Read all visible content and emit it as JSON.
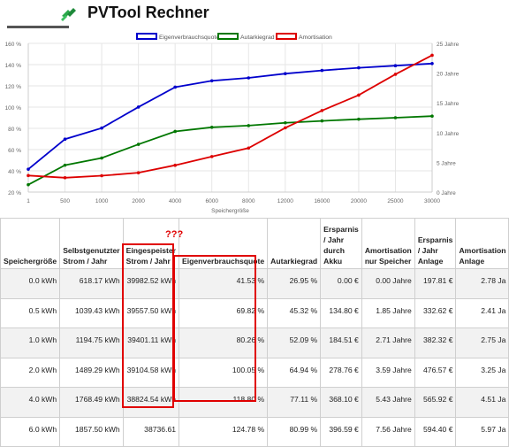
{
  "app": {
    "title": "PVTool Rechner",
    "logo_icon": "pvtool-logo-icon"
  },
  "chart_data": {
    "type": "line",
    "categories": [
      "1",
      "500",
      "1000",
      "2000",
      "4000",
      "6000",
      "8000",
      "12000",
      "16000",
      "20000",
      "25000",
      "30000"
    ],
    "xlabel": "Speichergröße",
    "legend_position": "top-center",
    "grid": true,
    "y_left": {
      "ticks": [
        "20 %",
        "40 %",
        "60 %",
        "80 %",
        "100 %",
        "120 %",
        "140 %",
        "160 %"
      ],
      "range": [
        20,
        160
      ]
    },
    "y_right": {
      "ticks": [
        "0 Jahre",
        "5 Jahre",
        "10 Jahre",
        "15 Jahre",
        "20 Jahre",
        "25 Jahre"
      ],
      "range": [
        0,
        25
      ]
    },
    "series": [
      {
        "name": "Eigenverbrauchsquote",
        "color": "#0000cc",
        "axis": "left",
        "values": [
          41.53,
          69.82,
          80.26,
          100.05,
          118.8,
          124.78,
          127.5,
          131.5,
          134.5,
          137,
          139,
          141
        ]
      },
      {
        "name": "Autarkiegrad",
        "color": "#007700",
        "axis": "left",
        "values": [
          26.95,
          45.32,
          52.09,
          64.94,
          77.11,
          80.99,
          82.6,
          85.2,
          87,
          88.6,
          90,
          91.5
        ]
      },
      {
        "name": "Amortisation",
        "color": "#dd0000",
        "axis": "right",
        "values": [
          2.78,
          2.41,
          2.75,
          3.25,
          4.51,
          5.97,
          7.4,
          10.8,
          13.7,
          16.3,
          19.8,
          23
        ]
      }
    ]
  },
  "table": {
    "headers": [
      "Speichergröße",
      "Selbstgenutzter Strom / Jahr",
      "Eingespeister Strom / Jahr",
      "Eigenverbrauchsquote",
      "Autarkiegrad",
      "Ersparnis / Jahr durch Akku",
      "Amortisation nur Speicher",
      "Ersparnis / Jahr Anlage",
      "Amortisation Anlage"
    ],
    "rows": [
      [
        "0.0 kWh",
        "618.17 kWh",
        "39982.52 kWh",
        "41.53 %",
        "26.95 %",
        "0.00 €",
        "0.00 Jahre",
        "197.81 €",
        "2.78 Ja"
      ],
      [
        "0.5 kWh",
        "1039.43 kWh",
        "39557.50 kWh",
        "69.82 %",
        "45.32 %",
        "134.80 €",
        "1.85 Jahre",
        "332.62 €",
        "2.41 Ja"
      ],
      [
        "1.0 kWh",
        "1194.75 kWh",
        "39401.11 kWh",
        "80.26 %",
        "52.09 %",
        "184.51 €",
        "2.71 Jahre",
        "382.32 €",
        "2.75 Ja"
      ],
      [
        "2.0 kWh",
        "1489.29 kWh",
        "39104.58 kWh",
        "100.05 %",
        "64.94 %",
        "278.76 €",
        "3.59 Jahre",
        "476.57 €",
        "3.25 Ja"
      ],
      [
        "4.0 kWh",
        "1768.49 kWh",
        "38824.54 kWh",
        "118.80 %",
        "77.11 %",
        "368.10 €",
        "5.43 Jahre",
        "565.92 €",
        "4.51 Ja"
      ],
      [
        "6.0 kWh",
        "1857.50 kWh",
        "38736.61",
        "124.78 %",
        "80.99 %",
        "396.59 €",
        "7.56 Jahre",
        "594.40 €",
        "5.97 Ja"
      ]
    ]
  },
  "annotation": {
    "question_marks": "???",
    "color": "#e00000"
  }
}
